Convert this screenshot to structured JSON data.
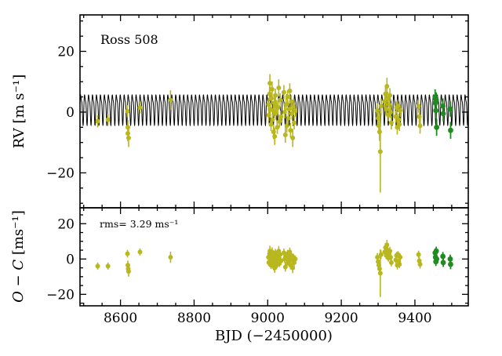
{
  "figure": {
    "background": "#ffffff",
    "star_label": "Ross 508",
    "rms_label": "rms=  3.29 ms⁻¹"
  },
  "colors": {
    "olive_points": "#b8b71e",
    "green_points": "#208b20",
    "model_curve": "#000000",
    "axis": "#000000"
  },
  "chart_data": [
    {
      "type": "scatter",
      "panel": "RV",
      "annotation": "Ross 508",
      "ylabel": "RV [m s⁻¹]",
      "xlabel": "",
      "grid": false,
      "legend": "none",
      "xlim": [
        8490,
        9545
      ],
      "ylim": [
        -31.5,
        32
      ],
      "yticks": {
        "values": [
          -20,
          0,
          20
        ],
        "labels": [
          "−20",
          "0",
          "20"
        ],
        "minor_step": 5
      },
      "xticks": {
        "values": [
          8600,
          8800,
          9000,
          9200,
          9400
        ],
        "labels": [
          "8600",
          "8800",
          "9000",
          "9200",
          "9400"
        ],
        "minor_step": 50,
        "show_labels": false
      },
      "model_curve": {
        "name": "keplerian-model",
        "color": "#000000",
        "period_days": 10.77,
        "offset": 1.5,
        "sin_amp": 4.5,
        "harmonic_amp": 1.5,
        "harmonic_phase": 0.9,
        "sample_step_days": 0.2
      },
      "series": [
        {
          "name": "ird-olive",
          "color": "#b8b71e",
          "marker_radius": 3.0,
          "errorbar_width": 1.6,
          "points": [
            [
              8538,
              -3.0,
              2.0
            ],
            [
              8566,
              -2.5,
              2.0
            ],
            [
              8619,
              0.3,
              2.0
            ],
            [
              8620,
              -5.0,
              2.4
            ],
            [
              8620,
              -7.0,
              2.6
            ],
            [
              8622,
              -8.5,
              3.0
            ],
            [
              8653,
              1.5,
              2.0
            ],
            [
              8736,
              4.0,
              3.2
            ],
            [
              9002,
              2.5,
              2.2
            ],
            [
              9003,
              -1.0,
              2.0
            ],
            [
              9005,
              6.0,
              2.4
            ],
            [
              9006,
              9.5,
              3.0
            ],
            [
              9007,
              1.0,
              2.0
            ],
            [
              9009,
              -4.0,
              2.2
            ],
            [
              9010,
              4.5,
              2.0
            ],
            [
              9012,
              7.5,
              2.6
            ],
            [
              9013,
              -2.5,
              2.0
            ],
            [
              9015,
              0.5,
              2.0
            ],
            [
              9016,
              -6.5,
              2.4
            ],
            [
              9018,
              3.0,
              2.0
            ],
            [
              9019,
              -8.0,
              2.8
            ],
            [
              9021,
              5.5,
              2.2
            ],
            [
              9022,
              -0.5,
              2.0
            ],
            [
              9024,
              2.0,
              2.0
            ],
            [
              9026,
              -5.0,
              2.2
            ],
            [
              9028,
              1.5,
              2.0
            ],
            [
              9030,
              8.0,
              2.8
            ],
            [
              9032,
              -3.0,
              2.0
            ],
            [
              9034,
              4.0,
              2.2
            ],
            [
              9036,
              -1.5,
              2.0
            ],
            [
              9044,
              6.5,
              2.4
            ],
            [
              9046,
              0.0,
              2.0
            ],
            [
              9048,
              -7.5,
              2.6
            ],
            [
              9050,
              2.5,
              2.0
            ],
            [
              9052,
              -4.5,
              2.2
            ],
            [
              9054,
              5.0,
              2.2
            ],
            [
              9056,
              -2.0,
              2.0
            ],
            [
              9058,
              1.0,
              2.0
            ],
            [
              9060,
              7.0,
              2.5
            ],
            [
              9062,
              -6.0,
              2.4
            ],
            [
              9064,
              3.5,
              2.0
            ],
            [
              9066,
              -0.5,
              2.0
            ],
            [
              9068,
              -8.5,
              3.0
            ],
            [
              9070,
              2.0,
              2.0
            ],
            [
              9072,
              -3.5,
              2.2
            ],
            [
              9075,
              0.5,
              2.0
            ],
            [
              9298,
              0.5,
              2.4
            ],
            [
              9300,
              -2.0,
              2.4
            ],
            [
              9302,
              -4.5,
              2.8
            ],
            [
              9304,
              -6.5,
              3.0
            ],
            [
              9306,
              -13.0,
              13.5
            ],
            [
              9308,
              2.0,
              2.4
            ],
            [
              9318,
              3.5,
              2.2
            ],
            [
              9320,
              6.0,
              2.4
            ],
            [
              9322,
              1.0,
              2.0
            ],
            [
              9324,
              8.5,
              2.8
            ],
            [
              9326,
              4.5,
              2.2
            ],
            [
              9328,
              -1.0,
              2.0
            ],
            [
              9330,
              2.5,
              2.0
            ],
            [
              9332,
              5.5,
              2.4
            ],
            [
              9334,
              0.0,
              2.0
            ],
            [
              9336,
              -3.5,
              2.2
            ],
            [
              9348,
              -1.5,
              2.0
            ],
            [
              9350,
              1.5,
              2.0
            ],
            [
              9352,
              -5.0,
              2.4
            ],
            [
              9354,
              2.0,
              2.0
            ],
            [
              9356,
              -2.5,
              2.0
            ],
            [
              9358,
              -4.0,
              2.2
            ],
            [
              9360,
              0.5,
              2.0
            ],
            [
              9410,
              2.0,
              2.2
            ],
            [
              9412,
              -1.5,
              2.2
            ],
            [
              9414,
              -4.5,
              2.6
            ]
          ]
        },
        {
          "name": "ird-green",
          "color": "#208b20",
          "marker_radius": 3.4,
          "errorbar_width": 1.8,
          "points": [
            [
              9455,
              5.0,
              2.5
            ],
            [
              9456,
              3.0,
              2.5
            ],
            [
              9457,
              0.5,
              2.5
            ],
            [
              9458,
              4.0,
              2.5
            ],
            [
              9459,
              -5.0,
              2.8
            ],
            [
              9476,
              2.0,
              2.5
            ],
            [
              9477,
              -0.5,
              2.5
            ],
            [
              9496,
              1.0,
              2.5
            ],
            [
              9497,
              -6.0,
              2.8
            ]
          ]
        }
      ]
    },
    {
      "type": "scatter",
      "panel": "O-C residuals",
      "annotation": "rms=  3.29 ms⁻¹",
      "ylabel_italic": "O − C",
      "ylabel_rest": " [ms⁻¹]",
      "xlabel": "BJD (−2450000)",
      "grid": false,
      "legend": "none",
      "xlim": [
        8490,
        9545
      ],
      "ylim": [
        -26.5,
        29
      ],
      "yticks": {
        "values": [
          -20,
          0,
          20
        ],
        "labels": [
          "−20",
          "0",
          "20"
        ],
        "minor_step": 5
      },
      "xticks": {
        "values": [
          8600,
          8800,
          9000,
          9200,
          9400
        ],
        "labels": [
          "8600",
          "8800",
          "9000",
          "9200",
          "9400"
        ],
        "minor_step": 50,
        "show_labels": true
      },
      "series": [
        {
          "name": "ird-olive-residuals",
          "color": "#b8b71e",
          "marker_radius": 3.0,
          "errorbar_width": 1.6,
          "points": [
            [
              8538,
              -4.0,
              2.0
            ],
            [
              8566,
              -4.0,
              2.0
            ],
            [
              8619,
              3.0,
              2.2
            ],
            [
              8620,
              -3.5,
              2.6
            ],
            [
              8621,
              -5.5,
              2.8
            ],
            [
              8622,
              -7.0,
              3.0
            ],
            [
              8653,
              4.0,
              2.0
            ],
            [
              8736,
              1.0,
              3.2
            ],
            [
              9002,
              1.0,
              2.2
            ],
            [
              9003,
              -2.0,
              2.0
            ],
            [
              9005,
              3.0,
              2.4
            ],
            [
              9006,
              4.5,
              3.0
            ],
            [
              9007,
              -0.5,
              2.0
            ],
            [
              9009,
              -3.5,
              2.2
            ],
            [
              9010,
              2.0,
              2.0
            ],
            [
              9012,
              4.0,
              2.6
            ],
            [
              9013,
              -1.5,
              2.0
            ],
            [
              9015,
              0.5,
              2.0
            ],
            [
              9016,
              -4.0,
              2.4
            ],
            [
              9018,
              1.5,
              2.0
            ],
            [
              9019,
              -5.0,
              2.8
            ],
            [
              9021,
              3.5,
              2.2
            ],
            [
              9022,
              -1.0,
              2.0
            ],
            [
              9024,
              2.0,
              2.0
            ],
            [
              9026,
              -3.0,
              2.2
            ],
            [
              9028,
              0.5,
              2.0
            ],
            [
              9030,
              4.5,
              2.8
            ],
            [
              9032,
              -2.5,
              2.0
            ],
            [
              9034,
              2.5,
              2.2
            ],
            [
              9036,
              -1.0,
              2.0
            ],
            [
              9044,
              3.5,
              2.4
            ],
            [
              9046,
              0.0,
              2.0
            ],
            [
              9048,
              -4.5,
              2.6
            ],
            [
              9050,
              1.5,
              2.0
            ],
            [
              9052,
              -2.5,
              2.2
            ],
            [
              9054,
              3.0,
              2.2
            ],
            [
              9056,
              -1.5,
              2.0
            ],
            [
              9058,
              0.5,
              2.0
            ],
            [
              9060,
              4.0,
              2.5
            ],
            [
              9062,
              -3.5,
              2.4
            ],
            [
              9064,
              2.0,
              2.0
            ],
            [
              9066,
              -0.5,
              2.0
            ],
            [
              9068,
              -5.0,
              3.0
            ],
            [
              9070,
              1.0,
              2.0
            ],
            [
              9072,
              -2.0,
              2.2
            ],
            [
              9075,
              0.0,
              2.0
            ],
            [
              9298,
              1.0,
              2.4
            ],
            [
              9300,
              -1.5,
              2.4
            ],
            [
              9302,
              -3.5,
              2.8
            ],
            [
              9304,
              -5.5,
              3.0
            ],
            [
              9306,
              -8.0,
              13.5
            ],
            [
              9308,
              2.5,
              2.4
            ],
            [
              9318,
              4.0,
              2.2
            ],
            [
              9320,
              6.5,
              2.4
            ],
            [
              9322,
              2.0,
              2.0
            ],
            [
              9324,
              8.0,
              2.8
            ],
            [
              9326,
              5.0,
              2.2
            ],
            [
              9328,
              0.5,
              2.0
            ],
            [
              9330,
              3.0,
              2.0
            ],
            [
              9332,
              4.5,
              2.4
            ],
            [
              9334,
              1.0,
              2.0
            ],
            [
              9336,
              -2.0,
              2.2
            ],
            [
              9348,
              -0.5,
              2.0
            ],
            [
              9350,
              2.0,
              2.0
            ],
            [
              9352,
              -3.5,
              2.4
            ],
            [
              9354,
              2.5,
              2.0
            ],
            [
              9356,
              -1.5,
              2.0
            ],
            [
              9358,
              -3.0,
              2.2
            ],
            [
              9360,
              1.0,
              2.0
            ],
            [
              9410,
              2.5,
              2.2
            ],
            [
              9412,
              -1.0,
              2.2
            ],
            [
              9414,
              -3.0,
              2.4
            ]
          ]
        },
        {
          "name": "ird-green-residuals",
          "color": "#208b20",
          "marker_radius": 3.4,
          "errorbar_width": 1.8,
          "points": [
            [
              9455,
              3.5,
              2.5
            ],
            [
              9456,
              1.0,
              2.5
            ],
            [
              9457,
              -1.5,
              2.5
            ],
            [
              9458,
              4.5,
              2.5
            ],
            [
              9459,
              0.0,
              2.5
            ],
            [
              9476,
              1.5,
              2.5
            ],
            [
              9477,
              -2.0,
              2.5
            ],
            [
              9496,
              0.0,
              2.5
            ],
            [
              9497,
              -3.0,
              2.8
            ]
          ]
        }
      ]
    }
  ]
}
